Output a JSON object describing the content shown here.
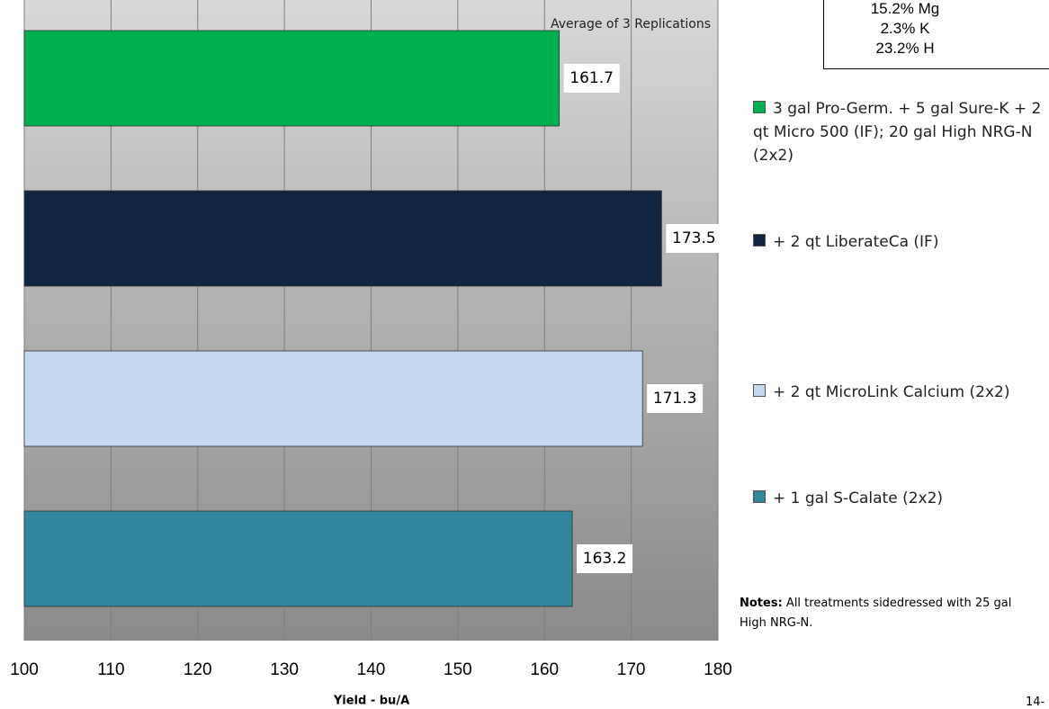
{
  "chart_data": {
    "type": "hbar",
    "annotation": "Average of 3 Replications",
    "xlabel": "Yield - bu/A",
    "xlim": [
      100,
      180
    ],
    "xticks": [
      100,
      110,
      120,
      130,
      140,
      150,
      160,
      170,
      180
    ],
    "grid": true,
    "series": [
      {
        "name": "3 gal Pro-Germ. + 5 gal Sure-K + 2 qt Micro 500 (IF); 20 gal High NRG-N (2x2)",
        "color": "#00b050",
        "values": [
          161.7
        ]
      },
      {
        "name": "+ 2 qt LiberateCa (IF)",
        "color": "#112440",
        "values": [
          173.5
        ]
      },
      {
        "name": "+ 2 qt MicroLink Calcium (2x2)",
        "color": "#c5d9f1",
        "values": [
          171.3
        ]
      },
      {
        "name": "+ 1 gal S-Calate (2x2)",
        "color": "#31859c",
        "values": [
          163.2
        ]
      }
    ]
  },
  "analysis_box": [
    "15.2% Mg",
    "2.3% K",
    "23.2% H"
  ],
  "notes": {
    "label": "Notes:",
    "text": "All treatments sidedressed with 25 gal High NRG-N."
  },
  "page_number": "14-"
}
